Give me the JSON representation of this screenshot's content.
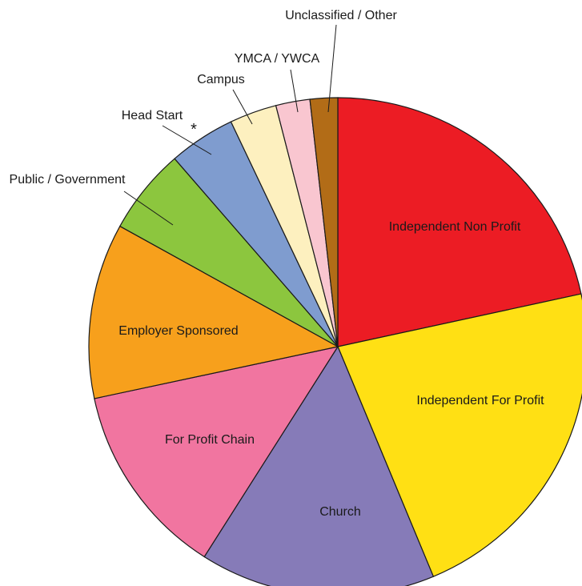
{
  "chart_data": {
    "type": "pie",
    "start_angle": "12 o'clock",
    "direction": "clockwise",
    "legend": "none",
    "slices": [
      {
        "label": "Independent Non Profit",
        "value": 20.5,
        "color": "#ec1c24",
        "label_inside": true
      },
      {
        "label": "Independent For Profit",
        "value": 21.0,
        "color": "#ffe014",
        "label_inside": true
      },
      {
        "label": "Church",
        "value": 14.5,
        "color": "#867bb8",
        "label_inside": true
      },
      {
        "label": "For Profit Chain",
        "value": 12.0,
        "color": "#f175a0",
        "label_inside": true
      },
      {
        "label": "Employer Sponsored",
        "value": 10.8,
        "color": "#f7a01c",
        "label_inside": true
      },
      {
        "label": "Public / Government",
        "value": 5.3,
        "color": "#8cc63e",
        "label_inside": false
      },
      {
        "label": "Head Start",
        "value": 4.1,
        "color": "#7f9ccf",
        "label_inside": false,
        "marker": "*"
      },
      {
        "label": "Campus",
        "value": 2.9,
        "color": "#fdf0bf",
        "label_inside": false
      },
      {
        "label": "YMCA / YWCA",
        "value": 2.1,
        "color": "#f9c6d0",
        "label_inside": false
      },
      {
        "label": "Unclassified / Other",
        "value": 1.7,
        "color": "#b26c17",
        "label_inside": false
      }
    ]
  }
}
